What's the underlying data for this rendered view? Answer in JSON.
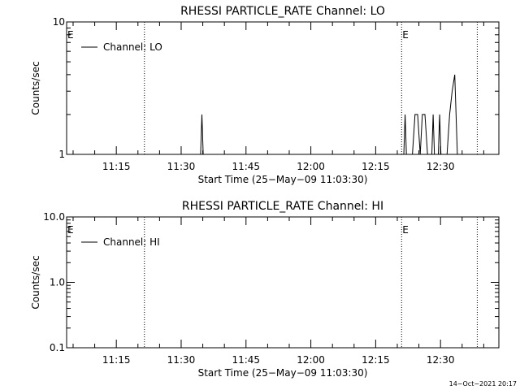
{
  "chart_data": [
    {
      "type": "line",
      "title": "RHESSI PARTICLE_RATE Channel: LO",
      "xlabel": "Start Time (25−May−09 11:03:30)",
      "ylabel": "Counts/sec",
      "y_scale": "log",
      "ylim": [
        1,
        10
      ],
      "y_ticks": [
        "1",
        "10"
      ],
      "xlim": [
        "11:03:30",
        "12:43:30"
      ],
      "x_ticks": [
        "11:15",
        "11:30",
        "11:45",
        "12:00",
        "12:15",
        "12:30"
      ],
      "legend": {
        "placement": "top-left",
        "entries": [
          "Channel: LO"
        ]
      },
      "grid": false,
      "markers": [
        {
          "label": "E",
          "time": "11:03:30"
        },
        {
          "label": "",
          "time": "11:21:30"
        },
        {
          "label": "E",
          "time": "12:21:00"
        },
        {
          "label": "",
          "time": "12:38:30"
        }
      ],
      "series": [
        {
          "name": "Channel: LO",
          "points": [
            [
              "11:34:30",
              1
            ],
            [
              "11:34:48",
              2
            ],
            [
              "11:35:06",
              1
            ],
            [
              "12:21:30",
              1
            ],
            [
              "12:21:48",
              2
            ],
            [
              "12:22:06",
              1
            ],
            [
              "12:23:30",
              1
            ],
            [
              "12:24:06",
              2
            ],
            [
              "12:24:42",
              2
            ],
            [
              "12:25:18",
              1
            ],
            [
              "12:25:48",
              2
            ],
            [
              "12:26:24",
              2
            ],
            [
              "12:27:00",
              1
            ],
            [
              "12:28:00",
              1
            ],
            [
              "12:28:18",
              2
            ],
            [
              "12:28:36",
              1
            ],
            [
              "12:29:30",
              1
            ],
            [
              "12:29:48",
              2
            ],
            [
              "12:30:06",
              1
            ],
            [
              "12:31:30",
              1
            ],
            [
              "12:32:06",
              2
            ],
            [
              "12:32:42",
              3
            ],
            [
              "12:33:18",
              4
            ],
            [
              "12:33:54",
              1
            ]
          ]
        }
      ]
    },
    {
      "type": "line",
      "title": "RHESSI PARTICLE_RATE Channel: HI",
      "xlabel": "Start Time (25−May−09 11:03:30)",
      "ylabel": "Counts/sec",
      "y_scale": "log",
      "ylim": [
        0.1,
        10
      ],
      "y_ticks": [
        "0.1",
        "1.0",
        "10.0"
      ],
      "xlim": [
        "11:03:30",
        "12:43:30"
      ],
      "x_ticks": [
        "11:15",
        "11:30",
        "11:45",
        "12:00",
        "12:15",
        "12:30"
      ],
      "legend": {
        "placement": "top-left",
        "entries": [
          "Channel: HI"
        ]
      },
      "grid": false,
      "markers": [
        {
          "label": "E",
          "time": "11:03:30"
        },
        {
          "label": "",
          "time": "11:21:30"
        },
        {
          "label": "E",
          "time": "12:21:00"
        },
        {
          "label": "",
          "time": "12:38:30"
        }
      ],
      "series": [
        {
          "name": "Channel: HI",
          "points": []
        }
      ]
    }
  ],
  "footer": {
    "date_stamp": "14−Oct−2021 20:17"
  }
}
